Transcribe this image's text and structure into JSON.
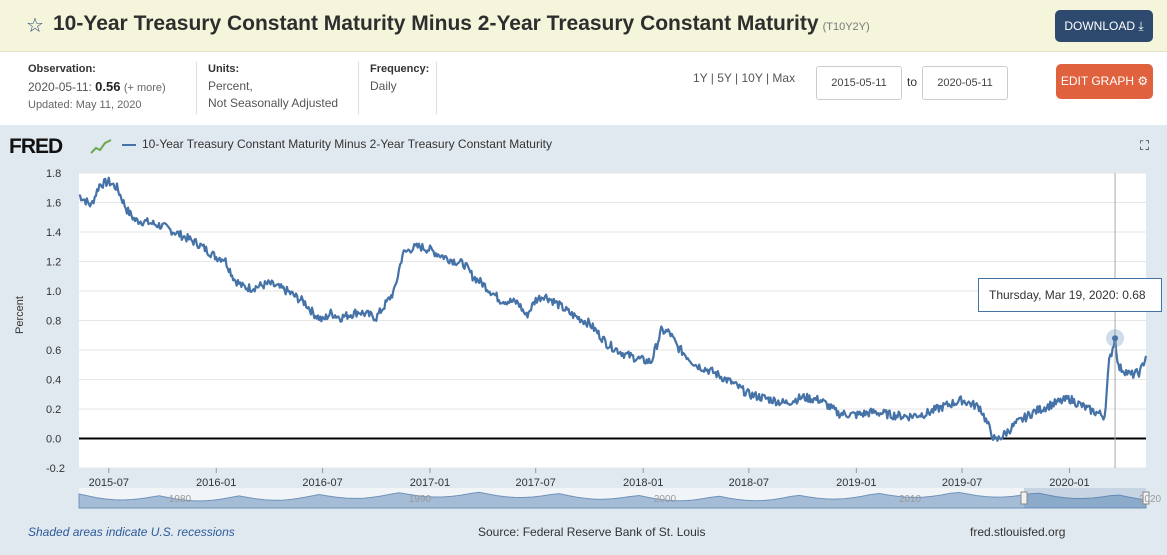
{
  "header": {
    "star_icon": "star-outline-icon",
    "title": "10-Year Treasury Constant Maturity Minus 2-Year Treasury Constant Maturity",
    "series_id": "(T10Y2Y)",
    "download_label": "DOWNLOAD"
  },
  "meta": {
    "observation_label": "Observation:",
    "observation_date": "2020-05-11:",
    "observation_value": "0.56",
    "observation_more": "(+ more)",
    "updated": "Updated: May 11, 2020",
    "units_label": "Units:",
    "units_line1": "Percent,",
    "units_line2": "Not Seasonally Adjusted",
    "frequency_label": "Frequency:",
    "frequency_value": "Daily"
  },
  "controls": {
    "range_links": "1Y | 5Y | 10Y | Max",
    "start_date": "2015-05-11",
    "to_label": "to",
    "end_date": "2020-05-11",
    "edit_label": "EDIT GRAPH"
  },
  "legend": {
    "logo": "FRED",
    "series_name": "10-Year Treasury Constant Maturity Minus 2-Year Treasury Constant Maturity"
  },
  "tooltip": {
    "date": "Thursday, Mar 19, 2020:",
    "value": "0.68"
  },
  "footer": {
    "recessions": "Shaded areas indicate U.S. recessions",
    "source": "Source: Federal Reserve Bank of St. Louis",
    "site": "fred.stlouisfed.org"
  },
  "navigator": {
    "labels": [
      "1980",
      "1990",
      "2000",
      "2010",
      "2020"
    ]
  },
  "chart_data": {
    "type": "line",
    "ylabel": "Percent",
    "ylim": [
      -0.2,
      1.8
    ],
    "yticks": [
      -0.2,
      0.0,
      0.2,
      0.4,
      0.6,
      0.8,
      1.0,
      1.2,
      1.4,
      1.6,
      1.8
    ],
    "xlim": [
      "2015-05-11",
      "2020-05-11"
    ],
    "xticks": [
      "2015-07",
      "2016-01",
      "2016-07",
      "2017-01",
      "2017-07",
      "2018-01",
      "2018-07",
      "2019-01",
      "2019-07",
      "2020-01"
    ],
    "grid": true,
    "line_color": "#4572a7",
    "series": [
      {
        "name": "10-Year Treasury Constant Maturity Minus 2-Year Treasury Constant Maturity",
        "x": [
          "2015-05-11",
          "2015-06-01",
          "2015-06-15",
          "2015-07-01",
          "2015-07-15",
          "2015-08-01",
          "2015-08-15",
          "2015-09-01",
          "2015-10-01",
          "2015-11-01",
          "2015-12-01",
          "2016-01-01",
          "2016-01-15",
          "2016-02-01",
          "2016-02-15",
          "2016-03-01",
          "2016-04-01",
          "2016-05-01",
          "2016-06-01",
          "2016-06-15",
          "2016-07-01",
          "2016-07-15",
          "2016-08-01",
          "2016-09-01",
          "2016-10-01",
          "2016-10-15",
          "2016-11-01",
          "2016-11-15",
          "2016-12-01",
          "2016-12-15",
          "2017-01-01",
          "2017-01-15",
          "2017-02-01",
          "2017-03-01",
          "2017-03-15",
          "2017-04-01",
          "2017-05-01",
          "2017-06-01",
          "2017-06-15",
          "2017-07-01",
          "2017-07-15",
          "2017-08-01",
          "2017-09-01",
          "2017-10-01",
          "2017-11-01",
          "2017-12-01",
          "2018-01-01",
          "2018-01-15",
          "2018-02-01",
          "2018-02-15",
          "2018-03-01",
          "2018-04-01",
          "2018-05-01",
          "2018-06-01",
          "2018-07-01",
          "2018-08-01",
          "2018-09-01",
          "2018-10-01",
          "2018-11-01",
          "2018-12-01",
          "2019-01-01",
          "2019-02-01",
          "2019-03-01",
          "2019-04-01",
          "2019-05-01",
          "2019-06-01",
          "2019-07-01",
          "2019-08-01",
          "2019-08-27",
          "2019-09-15",
          "2019-10-01",
          "2019-11-01",
          "2019-12-01",
          "2020-01-01",
          "2020-02-01",
          "2020-02-20",
          "2020-03-01",
          "2020-03-09",
          "2020-03-19",
          "2020-03-25",
          "2020-04-01",
          "2020-04-15",
          "2020-05-01",
          "2020-05-11"
        ],
        "values": [
          1.65,
          1.58,
          1.72,
          1.74,
          1.7,
          1.55,
          1.48,
          1.47,
          1.44,
          1.38,
          1.32,
          1.23,
          1.22,
          1.08,
          1.03,
          1.02,
          1.05,
          1.0,
          0.92,
          0.85,
          0.8,
          0.85,
          0.82,
          0.86,
          0.82,
          0.9,
          1.0,
          1.25,
          1.29,
          1.3,
          1.28,
          1.25,
          1.22,
          1.18,
          1.1,
          1.05,
          0.94,
          0.92,
          0.83,
          0.94,
          0.97,
          0.93,
          0.84,
          0.78,
          0.64,
          0.57,
          0.53,
          0.52,
          0.73,
          0.72,
          0.62,
          0.5,
          0.45,
          0.38,
          0.3,
          0.27,
          0.24,
          0.28,
          0.26,
          0.17,
          0.16,
          0.18,
          0.16,
          0.15,
          0.17,
          0.22,
          0.26,
          0.21,
          -0.02,
          0.04,
          0.1,
          0.18,
          0.23,
          0.27,
          0.2,
          0.17,
          0.15,
          0.52,
          0.68,
          0.48,
          0.47,
          0.43,
          0.45,
          0.56
        ]
      }
    ]
  }
}
